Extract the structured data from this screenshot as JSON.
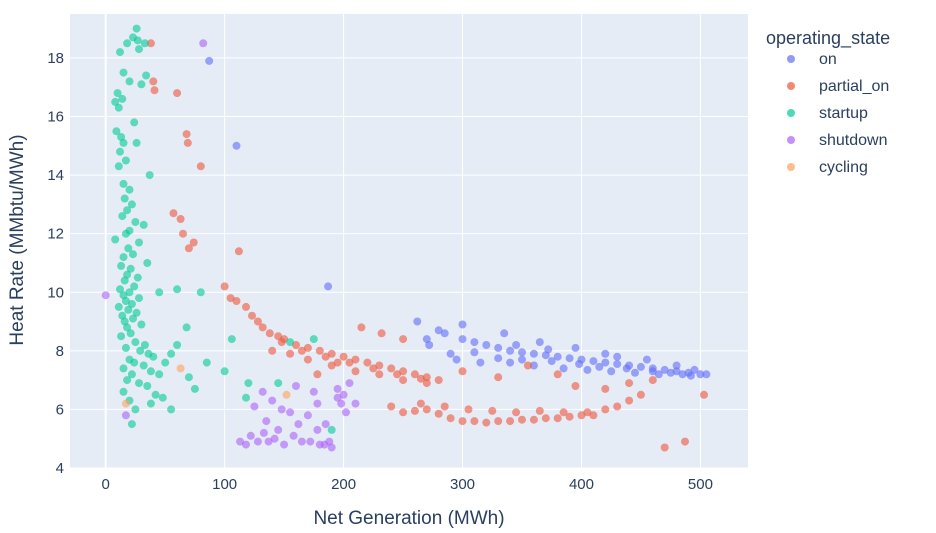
{
  "chart_data": {
    "type": "scatter",
    "title": "",
    "xlabel": "Net Generation (MWh)",
    "ylabel": "Heat Rate (MMbtu/MWh)",
    "xlim": [
      -30,
      540
    ],
    "ylim": [
      4,
      19.5
    ],
    "xticks": [
      0,
      100,
      200,
      300,
      400,
      500
    ],
    "yticks": [
      4,
      6,
      8,
      10,
      12,
      14,
      16,
      18
    ],
    "grid": true,
    "legend": {
      "title": "operating_state",
      "position": "right"
    },
    "series": [
      {
        "name": "on",
        "color": "#636efa",
        "points": [
          [
            87,
            17.9
          ],
          [
            110,
            15.0
          ],
          [
            187,
            10.2
          ],
          [
            262,
            9.0
          ],
          [
            270,
            8.4
          ],
          [
            285,
            8.6
          ],
          [
            300,
            8.4
          ],
          [
            310,
            8.3
          ],
          [
            320,
            8.2
          ],
          [
            330,
            8.1
          ],
          [
            340,
            8.0
          ],
          [
            350,
            7.95
          ],
          [
            360,
            7.9
          ],
          [
            370,
            7.85
          ],
          [
            380,
            7.8
          ],
          [
            390,
            7.75
          ],
          [
            400,
            7.7
          ],
          [
            410,
            7.65
          ],
          [
            420,
            7.6
          ],
          [
            430,
            7.55
          ],
          [
            440,
            7.5
          ],
          [
            450,
            7.45
          ],
          [
            460,
            7.4
          ],
          [
            470,
            7.35
          ],
          [
            480,
            7.3
          ],
          [
            490,
            7.25
          ],
          [
            500,
            7.2
          ],
          [
            505,
            7.2
          ],
          [
            295,
            7.7
          ],
          [
            315,
            7.6
          ],
          [
            340,
            7.6
          ],
          [
            360,
            7.5
          ],
          [
            385,
            7.4
          ],
          [
            405,
            7.35
          ],
          [
            425,
            7.3
          ],
          [
            445,
            7.25
          ],
          [
            465,
            7.2
          ],
          [
            485,
            7.2
          ],
          [
            300,
            8.9
          ],
          [
            335,
            8.6
          ],
          [
            365,
            8.3
          ],
          [
            395,
            8.1
          ],
          [
            420,
            7.9
          ],
          [
            455,
            7.7
          ],
          [
            480,
            7.5
          ],
          [
            495,
            7.35
          ],
          [
            272,
            8.2
          ],
          [
            290,
            7.9
          ],
          [
            310,
            7.95
          ],
          [
            330,
            7.75
          ],
          [
            350,
            7.7
          ],
          [
            375,
            7.65
          ],
          [
            398,
            7.55
          ],
          [
            415,
            7.45
          ],
          [
            438,
            7.4
          ],
          [
            460,
            7.3
          ],
          [
            475,
            7.25
          ],
          [
            492,
            7.15
          ],
          [
            280,
            8.7
          ],
          [
            345,
            8.2
          ],
          [
            372,
            8.05
          ],
          [
            430,
            7.8
          ]
        ]
      },
      {
        "name": "partial_on",
        "color": "#EF553B",
        "points": [
          [
            38,
            18.5
          ],
          [
            40,
            17.2
          ],
          [
            41,
            16.9
          ],
          [
            60,
            16.8
          ],
          [
            68,
            15.4
          ],
          [
            69,
            15.1
          ],
          [
            80,
            14.3
          ],
          [
            57,
            12.7
          ],
          [
            63,
            12.5
          ],
          [
            65,
            12.0
          ],
          [
            74,
            11.7
          ],
          [
            70,
            11.5
          ],
          [
            112,
            11.4
          ],
          [
            100,
            10.2
          ],
          [
            105,
            9.8
          ],
          [
            110,
            9.7
          ],
          [
            118,
            9.5
          ],
          [
            123,
            9.2
          ],
          [
            128,
            9.0
          ],
          [
            132,
            8.8
          ],
          [
            138,
            8.6
          ],
          [
            145,
            8.5
          ],
          [
            150,
            8.4
          ],
          [
            160,
            8.2
          ],
          [
            170,
            8.1
          ],
          [
            180,
            8.0
          ],
          [
            190,
            7.9
          ],
          [
            200,
            7.8
          ],
          [
            210,
            7.7
          ],
          [
            220,
            7.6
          ],
          [
            230,
            7.5
          ],
          [
            240,
            7.4
          ],
          [
            250,
            7.3
          ],
          [
            260,
            7.2
          ],
          [
            270,
            7.1
          ],
          [
            280,
            7.0
          ],
          [
            140,
            8.0
          ],
          [
            155,
            7.9
          ],
          [
            170,
            7.7
          ],
          [
            190,
            7.5
          ],
          [
            210,
            7.3
          ],
          [
            230,
            7.2
          ],
          [
            250,
            7.0
          ],
          [
            270,
            6.9
          ],
          [
            148,
            8.3
          ],
          [
            165,
            8.0
          ],
          [
            185,
            7.8
          ],
          [
            205,
            7.6
          ],
          [
            225,
            7.4
          ],
          [
            245,
            7.2
          ],
          [
            265,
            7.05
          ],
          [
            240,
            6.1
          ],
          [
            250,
            5.9
          ],
          [
            260,
            5.95
          ],
          [
            270,
            6.0
          ],
          [
            280,
            5.85
          ],
          [
            290,
            5.7
          ],
          [
            300,
            5.6
          ],
          [
            310,
            5.6
          ],
          [
            320,
            5.55
          ],
          [
            330,
            5.6
          ],
          [
            340,
            5.6
          ],
          [
            350,
            5.65
          ],
          [
            360,
            5.65
          ],
          [
            370,
            5.7
          ],
          [
            380,
            5.7
          ],
          [
            390,
            5.75
          ],
          [
            400,
            5.8
          ],
          [
            410,
            5.8
          ],
          [
            265,
            6.2
          ],
          [
            285,
            6.1
          ],
          [
            305,
            6.0
          ],
          [
            325,
            5.95
          ],
          [
            345,
            5.9
          ],
          [
            365,
            5.95
          ],
          [
            385,
            5.9
          ],
          [
            405,
            5.9
          ],
          [
            420,
            6.0
          ],
          [
            430,
            6.1
          ],
          [
            440,
            6.3
          ],
          [
            450,
            6.5
          ],
          [
            420,
            6.7
          ],
          [
            440,
            6.9
          ],
          [
            460,
            7.0
          ],
          [
            232,
            8.6
          ],
          [
            250,
            8.4
          ],
          [
            300,
            7.3
          ],
          [
            330,
            7.1
          ],
          [
            355,
            7.5
          ],
          [
            380,
            7.2
          ],
          [
            395,
            6.8
          ],
          [
            470,
            4.7
          ],
          [
            487,
            4.9
          ],
          [
            503,
            6.5
          ],
          [
            215,
            8.8
          ],
          [
            178,
            7.2
          ],
          [
            195,
            7.6
          ]
        ]
      },
      {
        "name": "startup",
        "color": "#00cc96",
        "points": [
          [
            26,
            19.0
          ],
          [
            27,
            18.6
          ],
          [
            12,
            18.2
          ],
          [
            18,
            18.5
          ],
          [
            23,
            18.7
          ],
          [
            33,
            18.5
          ],
          [
            28,
            18.3
          ],
          [
            15,
            17.5
          ],
          [
            20,
            17.2
          ],
          [
            34,
            17.4
          ],
          [
            30,
            17.1
          ],
          [
            10,
            16.8
          ],
          [
            14,
            16.6
          ],
          [
            8,
            16.5
          ],
          [
            11,
            16.3
          ],
          [
            24,
            15.8
          ],
          [
            9,
            15.5
          ],
          [
            13,
            15.3
          ],
          [
            26,
            15.1
          ],
          [
            15,
            15.1
          ],
          [
            12,
            14.8
          ],
          [
            17,
            14.5
          ],
          [
            11,
            14.3
          ],
          [
            37,
            14.0
          ],
          [
            15,
            13.7
          ],
          [
            20,
            13.5
          ],
          [
            16,
            13.2
          ],
          [
            22,
            13.0
          ],
          [
            18,
            12.8
          ],
          [
            14,
            12.6
          ],
          [
            25,
            12.4
          ],
          [
            32,
            12.3
          ],
          [
            20,
            12.1
          ],
          [
            17,
            12.0
          ],
          [
            8,
            11.8
          ],
          [
            28,
            11.7
          ],
          [
            19,
            11.5
          ],
          [
            23,
            11.3
          ],
          [
            15,
            11.2
          ],
          [
            35,
            11.0
          ],
          [
            13,
            10.9
          ],
          [
            21,
            10.8
          ],
          [
            18,
            10.6
          ],
          [
            27,
            10.5
          ],
          [
            16,
            10.4
          ],
          [
            24,
            10.2
          ],
          [
            12,
            10.1
          ],
          [
            20,
            10.0
          ],
          [
            15,
            9.9
          ],
          [
            28,
            9.8
          ],
          [
            17,
            9.7
          ],
          [
            22,
            9.6
          ],
          [
            11,
            9.5
          ],
          [
            19,
            9.4
          ],
          [
            26,
            9.3
          ],
          [
            14,
            9.2
          ],
          [
            23,
            9.1
          ],
          [
            16,
            9.0
          ],
          [
            30,
            8.9
          ],
          [
            18,
            8.8
          ],
          [
            21,
            8.6
          ],
          [
            13,
            8.5
          ],
          [
            25,
            8.3
          ],
          [
            33,
            8.2
          ],
          [
            17,
            8.1
          ],
          [
            29,
            8.0
          ],
          [
            36,
            7.9
          ],
          [
            20,
            7.7
          ],
          [
            40,
            7.8
          ],
          [
            24,
            7.6
          ],
          [
            32,
            7.5
          ],
          [
            15,
            7.4
          ],
          [
            38,
            7.3
          ],
          [
            22,
            7.2
          ],
          [
            45,
            7.2
          ],
          [
            18,
            7.0
          ],
          [
            28,
            6.9
          ],
          [
            35,
            6.8
          ],
          [
            15,
            6.6
          ],
          [
            42,
            6.5
          ],
          [
            20,
            6.3
          ],
          [
            25,
            6.0
          ],
          [
            38,
            6.2
          ],
          [
            48,
            6.4
          ],
          [
            55,
            6.0
          ],
          [
            22,
            5.5
          ],
          [
            45,
            10.0
          ],
          [
            60,
            10.1
          ],
          [
            80,
            10.0
          ],
          [
            68,
            8.8
          ],
          [
            85,
            7.6
          ],
          [
            70,
            7.1
          ],
          [
            75,
            6.7
          ],
          [
            120,
            6.9
          ],
          [
            145,
            6.9
          ],
          [
            155,
            8.3
          ],
          [
            175,
            8.4
          ],
          [
            190,
            5.3
          ],
          [
            118,
            6.4
          ],
          [
            106,
            8.4
          ],
          [
            100,
            7.3
          ],
          [
            60,
            8.2
          ],
          [
            55,
            7.9
          ],
          [
            50,
            7.6
          ]
        ]
      },
      {
        "name": "shutdown",
        "color": "#ab63fa",
        "points": [
          [
            82,
            18.5
          ],
          [
            0,
            9.9
          ],
          [
            17,
            5.8
          ],
          [
            113,
            4.9
          ],
          [
            118,
            4.8
          ],
          [
            122,
            5.1
          ],
          [
            128,
            4.9
          ],
          [
            133,
            5.2
          ],
          [
            137,
            4.9
          ],
          [
            142,
            5.0
          ],
          [
            150,
            4.8
          ],
          [
            158,
            5.1
          ],
          [
            165,
            4.9
          ],
          [
            172,
            4.9
          ],
          [
            178,
            5.3
          ],
          [
            184,
            4.8
          ],
          [
            188,
            4.9
          ],
          [
            190,
            4.7
          ],
          [
            125,
            6.1
          ],
          [
            132,
            6.6
          ],
          [
            140,
            6.3
          ],
          [
            148,
            6.0
          ],
          [
            155,
            5.9
          ],
          [
            162,
            5.5
          ],
          [
            170,
            5.8
          ],
          [
            178,
            6.2
          ],
          [
            185,
            5.5
          ],
          [
            195,
            6.4
          ],
          [
            200,
            6.5
          ],
          [
            205,
            6.9
          ],
          [
            210,
            6.2
          ],
          [
            135,
            5.6
          ],
          [
            160,
            6.8
          ],
          [
            145,
            5.3
          ],
          [
            175,
            6.6
          ],
          [
            195,
            6.7
          ],
          [
            198,
            6.2
          ],
          [
            202,
            5.9
          ],
          [
            180,
            4.8
          ]
        ]
      },
      {
        "name": "cycling",
        "color": "#FFA15A",
        "points": [
          [
            63,
            7.4
          ],
          [
            17,
            6.2
          ],
          [
            152,
            6.5
          ]
        ]
      }
    ]
  }
}
